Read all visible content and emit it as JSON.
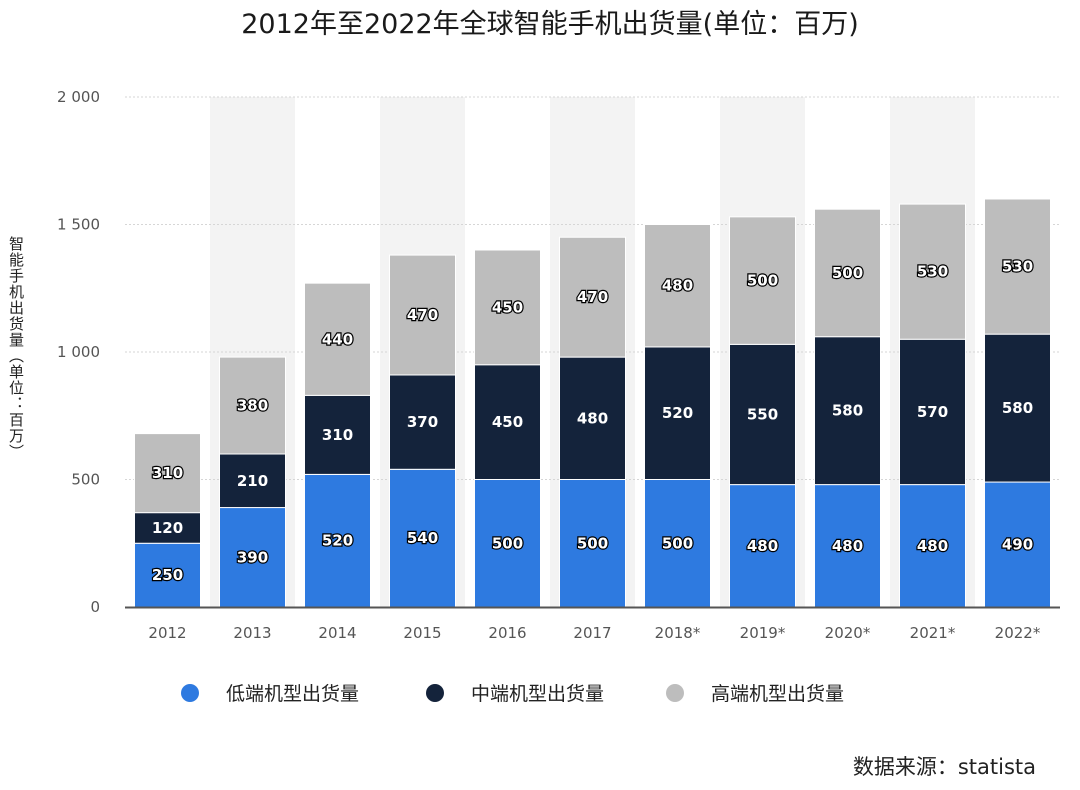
{
  "chart_data": {
    "type": "bar",
    "stacked": true,
    "title": "2012年至2022年全球智能手机出货量(单位：百万)",
    "ylabel": "智能手机出货量（单位：百万）",
    "xlabel": "",
    "ylim": [
      0,
      2000
    ],
    "yticks": [
      0,
      500,
      1000,
      1500,
      2000
    ],
    "ytick_labels": [
      "0",
      "500",
      "1 000",
      "1 500",
      "2 000"
    ],
    "categories": [
      "2012",
      "2013",
      "2014",
      "2015",
      "2016",
      "2017",
      "2018*",
      "2019*",
      "2020*",
      "2021*",
      "2022*"
    ],
    "series": [
      {
        "name": "低端机型出货量",
        "color": "#2e7ae0",
        "values": [
          250,
          390,
          520,
          540,
          500,
          500,
          500,
          480,
          480,
          480,
          490
        ]
      },
      {
        "name": "中端机型出货量",
        "color": "#14233b",
        "values": [
          120,
          210,
          310,
          370,
          450,
          480,
          520,
          550,
          580,
          570,
          580
        ]
      },
      {
        "name": "高端机型出货量",
        "color": "#bdbdbd",
        "values": [
          310,
          380,
          440,
          470,
          450,
          470,
          480,
          500,
          500,
          530,
          530
        ]
      }
    ],
    "grid": true,
    "legend_position": "bottom-center",
    "source": "数据来源：statista"
  }
}
